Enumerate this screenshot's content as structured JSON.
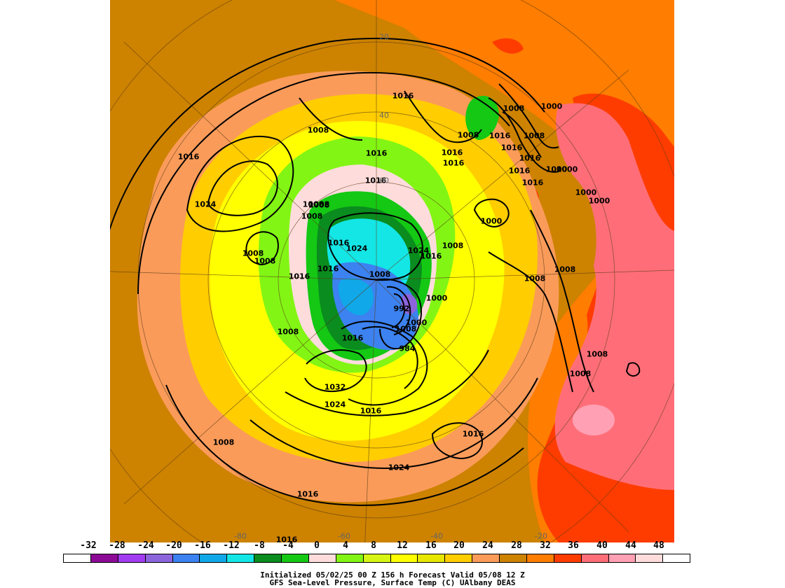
{
  "map": {
    "pressure_labels": [
      "1016",
      "1008",
      "1016",
      "1024",
      "1008",
      "1016",
      "1000",
      "1008",
      "1016",
      "1016",
      "1016",
      "1016",
      "1016",
      "1024",
      "1008",
      "1008",
      "1008",
      "1008",
      "1016",
      "1016",
      "1016",
      "1008",
      "1024",
      "1016",
      "1008",
      "1008",
      "1000",
      "1000",
      "1000",
      "1000",
      "992",
      "1008",
      "1016",
      "1008",
      "1008",
      "1008",
      "1032",
      "1024",
      "1016",
      "1016",
      "1024",
      "1008",
      "1016",
      "1016",
      "1008",
      "1016",
      "1016",
      "1016",
      "1000",
      "1000",
      "1008",
      "1008",
      "1008",
      "984",
      "1000"
    ],
    "latitude_labels": [
      "20",
      "40",
      "60"
    ],
    "longitude_labels": [
      "-80",
      "-60",
      "-40",
      "-20"
    ]
  },
  "colorbar": {
    "ticks": [
      "-32",
      "-28",
      "-24",
      "-20",
      "-16",
      "-12",
      "-8",
      "-4",
      "0",
      "4",
      "8",
      "12",
      "16",
      "20",
      "24",
      "28",
      "32",
      "36",
      "40",
      "44",
      "48"
    ],
    "colors": [
      "#ffffff",
      "#8c0a96",
      "#a23cf0",
      "#8c64dc",
      "#3c82f0",
      "#10a8e8",
      "#14e6e6",
      "#0a8c1e",
      "#14c814",
      "#ffdcdc",
      "#82f514",
      "#d7f514",
      "#ffff00",
      "#e6e600",
      "#ffcd00",
      "#fa9b5a",
      "#cd8200",
      "#ff7d00",
      "#ff3c00",
      "#ff6e78",
      "#ffa0b4",
      "#ffdcdc",
      "#ffffff"
    ]
  },
  "caption": {
    "line1": "Initialized 05/02/25 00 Z  156 h Forecast Valid 05/08 12 Z",
    "line2": "GFS Sea-Level Pressure, Surface Temp (C)    UAlbany DEAS"
  }
}
